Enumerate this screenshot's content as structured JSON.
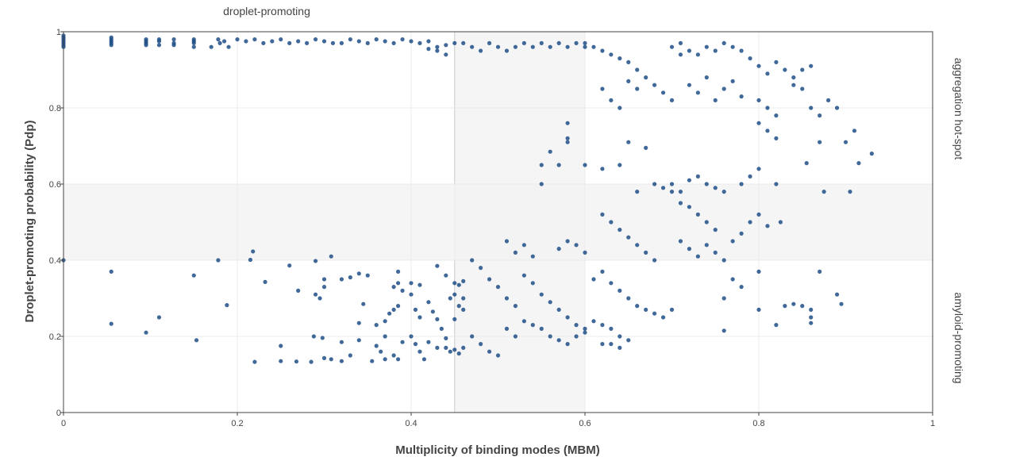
{
  "chart_data": {
    "type": "scatter",
    "xlabel": "Multiplicity of binding modes (MBM)",
    "ylabel": "Droplet-promoting probability (Pdp)",
    "xlim": [
      0,
      1
    ],
    "ylim": [
      0,
      1
    ],
    "x_ticks": [
      0,
      0.2,
      0.4,
      0.6,
      0.8,
      1
    ],
    "x_tick_labels": [
      "0",
      "0.2",
      "0.4",
      "0.6",
      "0.8",
      "1"
    ],
    "y_ticks": [
      0,
      0.2,
      0.4,
      0.6,
      0.8,
      1
    ],
    "y_tick_labels": [
      "0",
      "0.2",
      "0.4",
      "0.6",
      "0.8",
      "1"
    ],
    "grid": true,
    "shaded_bands": [
      {
        "axis": "x",
        "from": 0.45,
        "to": 0.6
      },
      {
        "axis": "y",
        "from": 0.4,
        "to": 0.6
      }
    ],
    "annotations": {
      "top": "droplet-promoting",
      "right_top": "aggregation hot-spot",
      "right_bottom": "amyloid-promoting"
    },
    "colors": {
      "marker": "#1f4e86",
      "band": "#f2f2f2",
      "grid": "#ebebeb",
      "frame": "#444444"
    },
    "points": [
      [
        0,
        0.97
      ],
      [
        0,
        0.98
      ],
      [
        0,
        0.96
      ],
      [
        0,
        0.99
      ],
      [
        0,
        0.975
      ],
      [
        0,
        0.965
      ],
      [
        0,
        0.985
      ],
      [
        0,
        0.4
      ],
      [
        0.055,
        0.98
      ],
      [
        0.055,
        0.97
      ],
      [
        0.055,
        0.965
      ],
      [
        0.055,
        0.975
      ],
      [
        0.055,
        0.985
      ],
      [
        0.055,
        0.37
      ],
      [
        0.055,
        0.233
      ],
      [
        0.095,
        0.98
      ],
      [
        0.095,
        0.97
      ],
      [
        0.095,
        0.965
      ],
      [
        0.095,
        0.975
      ],
      [
        0.095,
        0.21
      ],
      [
        0.11,
        0.98
      ],
      [
        0.11,
        0.965
      ],
      [
        0.11,
        0.975
      ],
      [
        0.11,
        0.25
      ],
      [
        0.127,
        0.98
      ],
      [
        0.127,
        0.97
      ],
      [
        0.127,
        0.965
      ],
      [
        0.15,
        0.98
      ],
      [
        0.15,
        0.97
      ],
      [
        0.15,
        0.975
      ],
      [
        0.15,
        0.96
      ],
      [
        0.15,
        0.36
      ],
      [
        0.153,
        0.19
      ],
      [
        0.17,
        0.96
      ],
      [
        0.178,
        0.98
      ],
      [
        0.18,
        0.97
      ],
      [
        0.185,
        0.975
      ],
      [
        0.19,
        0.96
      ],
      [
        0.178,
        0.4
      ],
      [
        0.188,
        0.282
      ],
      [
        0.2,
        0.98
      ],
      [
        0.21,
        0.975
      ],
      [
        0.22,
        0.98
      ],
      [
        0.23,
        0.97
      ],
      [
        0.24,
        0.975
      ],
      [
        0.218,
        0.423
      ],
      [
        0.215,
        0.401
      ],
      [
        0.232,
        0.343
      ],
      [
        0.22,
        0.133
      ],
      [
        0.25,
        0.98
      ],
      [
        0.26,
        0.97
      ],
      [
        0.27,
        0.975
      ],
      [
        0.28,
        0.97
      ],
      [
        0.29,
        0.98
      ],
      [
        0.3,
        0.975
      ],
      [
        0.31,
        0.97
      ],
      [
        0.26,
        0.386
      ],
      [
        0.27,
        0.32
      ],
      [
        0.29,
        0.398
      ],
      [
        0.3,
        0.35
      ],
      [
        0.308,
        0.41
      ],
      [
        0.29,
        0.31
      ],
      [
        0.295,
        0.3
      ],
      [
        0.3,
        0.33
      ],
      [
        0.25,
        0.175
      ],
      [
        0.25,
        0.135
      ],
      [
        0.268,
        0.134
      ],
      [
        0.285,
        0.133
      ],
      [
        0.288,
        0.2
      ],
      [
        0.298,
        0.196
      ],
      [
        0.3,
        0.143
      ],
      [
        0.308,
        0.14
      ],
      [
        0.32,
        0.97
      ],
      [
        0.33,
        0.98
      ],
      [
        0.34,
        0.975
      ],
      [
        0.35,
        0.97
      ],
      [
        0.36,
        0.98
      ],
      [
        0.37,
        0.975
      ],
      [
        0.38,
        0.97
      ],
      [
        0.39,
        0.98
      ],
      [
        0.32,
        0.35
      ],
      [
        0.33,
        0.355
      ],
      [
        0.34,
        0.365
      ],
      [
        0.35,
        0.36
      ],
      [
        0.345,
        0.285
      ],
      [
        0.34,
        0.235
      ],
      [
        0.32,
        0.185
      ],
      [
        0.33,
        0.15
      ],
      [
        0.32,
        0.135
      ],
      [
        0.34,
        0.19
      ],
      [
        0.355,
        0.135
      ],
      [
        0.36,
        0.23
      ],
      [
        0.37,
        0.24
      ],
      [
        0.375,
        0.26
      ],
      [
        0.38,
        0.27
      ],
      [
        0.385,
        0.28
      ],
      [
        0.38,
        0.33
      ],
      [
        0.385,
        0.34
      ],
      [
        0.39,
        0.32
      ],
      [
        0.385,
        0.37
      ],
      [
        0.36,
        0.175
      ],
      [
        0.37,
        0.2
      ],
      [
        0.38,
        0.15
      ],
      [
        0.385,
        0.14
      ],
      [
        0.39,
        0.185
      ],
      [
        0.37,
        0.14
      ],
      [
        0.365,
        0.16
      ],
      [
        0.4,
        0.975
      ],
      [
        0.41,
        0.97
      ],
      [
        0.42,
        0.975
      ],
      [
        0.43,
        0.96
      ],
      [
        0.44,
        0.965
      ],
      [
        0.45,
        0.97
      ],
      [
        0.42,
        0.955
      ],
      [
        0.43,
        0.95
      ],
      [
        0.44,
        0.94
      ],
      [
        0.4,
        0.34
      ],
      [
        0.41,
        0.335
      ],
      [
        0.4,
        0.31
      ],
      [
        0.405,
        0.27
      ],
      [
        0.41,
        0.25
      ],
      [
        0.42,
        0.29
      ],
      [
        0.425,
        0.265
      ],
      [
        0.43,
        0.245
      ],
      [
        0.4,
        0.2
      ],
      [
        0.405,
        0.18
      ],
      [
        0.41,
        0.16
      ],
      [
        0.42,
        0.185
      ],
      [
        0.43,
        0.17
      ],
      [
        0.415,
        0.14
      ],
      [
        0.43,
        0.385
      ],
      [
        0.44,
        0.36
      ],
      [
        0.44,
        0.195
      ],
      [
        0.445,
        0.3
      ],
      [
        0.45,
        0.31
      ],
      [
        0.45,
        0.245
      ],
      [
        0.435,
        0.22
      ],
      [
        0.44,
        0.17
      ],
      [
        0.445,
        0.16
      ],
      [
        0.45,
        0.165
      ],
      [
        0.455,
        0.155
      ],
      [
        0.46,
        0.17
      ],
      [
        0.45,
        0.34
      ],
      [
        0.455,
        0.335
      ],
      [
        0.46,
        0.3
      ],
      [
        0.46,
        0.27
      ],
      [
        0.46,
        0.345
      ],
      [
        0.455,
        0.28
      ],
      [
        0.46,
        0.97
      ],
      [
        0.47,
        0.96
      ],
      [
        0.48,
        0.95
      ],
      [
        0.49,
        0.97
      ],
      [
        0.5,
        0.96
      ],
      [
        0.51,
        0.95
      ],
      [
        0.52,
        0.96
      ],
      [
        0.53,
        0.97
      ],
      [
        0.54,
        0.96
      ],
      [
        0.55,
        0.97
      ],
      [
        0.56,
        0.96
      ],
      [
        0.57,
        0.97
      ],
      [
        0.58,
        0.96
      ],
      [
        0.59,
        0.97
      ],
      [
        0.6,
        0.96
      ],
      [
        0.47,
        0.4
      ],
      [
        0.48,
        0.38
      ],
      [
        0.49,
        0.35
      ],
      [
        0.5,
        0.33
      ],
      [
        0.51,
        0.3
      ],
      [
        0.52,
        0.28
      ],
      [
        0.53,
        0.36
      ],
      [
        0.54,
        0.34
      ],
      [
        0.55,
        0.31
      ],
      [
        0.56,
        0.29
      ],
      [
        0.57,
        0.27
      ],
      [
        0.58,
        0.25
      ],
      [
        0.59,
        0.23
      ],
      [
        0.6,
        0.21
      ],
      [
        0.47,
        0.2
      ],
      [
        0.48,
        0.18
      ],
      [
        0.49,
        0.16
      ],
      [
        0.5,
        0.15
      ],
      [
        0.51,
        0.22
      ],
      [
        0.52,
        0.2
      ],
      [
        0.53,
        0.24
      ],
      [
        0.54,
        0.23
      ],
      [
        0.55,
        0.22
      ],
      [
        0.56,
        0.2
      ],
      [
        0.57,
        0.19
      ],
      [
        0.58,
        0.18
      ],
      [
        0.59,
        0.2
      ],
      [
        0.6,
        0.22
      ],
      [
        0.51,
        0.45
      ],
      [
        0.52,
        0.42
      ],
      [
        0.53,
        0.44
      ],
      [
        0.54,
        0.41
      ],
      [
        0.55,
        0.6
      ],
      [
        0.55,
        0.65
      ],
      [
        0.56,
        0.685
      ],
      [
        0.57,
        0.65
      ],
      [
        0.58,
        0.71
      ],
      [
        0.58,
        0.72
      ],
      [
        0.58,
        0.76
      ],
      [
        0.57,
        0.43
      ],
      [
        0.58,
        0.45
      ],
      [
        0.59,
        0.44
      ],
      [
        0.6,
        0.42
      ],
      [
        0.6,
        0.97
      ],
      [
        0.61,
        0.96
      ],
      [
        0.62,
        0.95
      ],
      [
        0.63,
        0.94
      ],
      [
        0.64,
        0.93
      ],
      [
        0.65,
        0.92
      ],
      [
        0.66,
        0.9
      ],
      [
        0.67,
        0.88
      ],
      [
        0.68,
        0.86
      ],
      [
        0.69,
        0.84
      ],
      [
        0.7,
        0.82
      ],
      [
        0.62,
        0.85
      ],
      [
        0.63,
        0.82
      ],
      [
        0.64,
        0.8
      ],
      [
        0.65,
        0.87
      ],
      [
        0.66,
        0.85
      ],
      [
        0.6,
        0.65
      ],
      [
        0.62,
        0.64
      ],
      [
        0.64,
        0.65
      ],
      [
        0.65,
        0.71
      ],
      [
        0.67,
        0.695
      ],
      [
        0.66,
        0.58
      ],
      [
        0.68,
        0.6
      ],
      [
        0.69,
        0.59
      ],
      [
        0.7,
        0.58
      ],
      [
        0.62,
        0.52
      ],
      [
        0.63,
        0.5
      ],
      [
        0.64,
        0.48
      ],
      [
        0.65,
        0.46
      ],
      [
        0.66,
        0.44
      ],
      [
        0.67,
        0.42
      ],
      [
        0.68,
        0.4
      ],
      [
        0.61,
        0.35
      ],
      [
        0.62,
        0.37
      ],
      [
        0.63,
        0.34
      ],
      [
        0.64,
        0.32
      ],
      [
        0.65,
        0.3
      ],
      [
        0.66,
        0.28
      ],
      [
        0.67,
        0.27
      ],
      [
        0.68,
        0.26
      ],
      [
        0.69,
        0.25
      ],
      [
        0.7,
        0.27
      ],
      [
        0.61,
        0.24
      ],
      [
        0.62,
        0.23
      ],
      [
        0.63,
        0.22
      ],
      [
        0.64,
        0.2
      ],
      [
        0.65,
        0.19
      ],
      [
        0.62,
        0.18
      ],
      [
        0.63,
        0.18
      ],
      [
        0.64,
        0.17
      ],
      [
        0.7,
        0.96
      ],
      [
        0.71,
        0.97
      ],
      [
        0.72,
        0.95
      ],
      [
        0.73,
        0.94
      ],
      [
        0.74,
        0.96
      ],
      [
        0.75,
        0.95
      ],
      [
        0.76,
        0.97
      ],
      [
        0.71,
        0.94
      ],
      [
        0.72,
        0.86
      ],
      [
        0.73,
        0.84
      ],
      [
        0.74,
        0.88
      ],
      [
        0.75,
        0.82
      ],
      [
        0.76,
        0.85
      ],
      [
        0.77,
        0.87
      ],
      [
        0.78,
        0.83
      ],
      [
        0.7,
        0.6
      ],
      [
        0.71,
        0.58
      ],
      [
        0.72,
        0.61
      ],
      [
        0.73,
        0.62
      ],
      [
        0.74,
        0.6
      ],
      [
        0.75,
        0.59
      ],
      [
        0.76,
        0.58
      ],
      [
        0.71,
        0.55
      ],
      [
        0.72,
        0.54
      ],
      [
        0.73,
        0.52
      ],
      [
        0.74,
        0.5
      ],
      [
        0.75,
        0.48
      ],
      [
        0.71,
        0.45
      ],
      [
        0.72,
        0.43
      ],
      [
        0.73,
        0.41
      ],
      [
        0.74,
        0.44
      ],
      [
        0.75,
        0.42
      ],
      [
        0.76,
        0.4
      ],
      [
        0.77,
        0.45
      ],
      [
        0.78,
        0.47
      ],
      [
        0.79,
        0.5
      ],
      [
        0.8,
        0.52
      ],
      [
        0.81,
        0.49
      ],
      [
        0.78,
        0.6
      ],
      [
        0.79,
        0.62
      ],
      [
        0.8,
        0.64
      ],
      [
        0.76,
        0.3
      ],
      [
        0.77,
        0.35
      ],
      [
        0.78,
        0.33
      ],
      [
        0.8,
        0.37
      ],
      [
        0.8,
        0.27
      ],
      [
        0.82,
        0.23
      ],
      [
        0.76,
        0.215
      ],
      [
        0.77,
        0.96
      ],
      [
        0.78,
        0.95
      ],
      [
        0.79,
        0.93
      ],
      [
        0.8,
        0.91
      ],
      [
        0.81,
        0.89
      ],
      [
        0.82,
        0.92
      ],
      [
        0.83,
        0.9
      ],
      [
        0.84,
        0.88
      ],
      [
        0.85,
        0.9
      ],
      [
        0.86,
        0.91
      ],
      [
        0.8,
        0.76
      ],
      [
        0.81,
        0.74
      ],
      [
        0.82,
        0.72
      ],
      [
        0.8,
        0.82
      ],
      [
        0.81,
        0.8
      ],
      [
        0.82,
        0.78
      ],
      [
        0.84,
        0.86
      ],
      [
        0.85,
        0.85
      ],
      [
        0.83,
        0.28
      ],
      [
        0.84,
        0.285
      ],
      [
        0.85,
        0.28
      ],
      [
        0.86,
        0.27
      ],
      [
        0.86,
        0.25
      ],
      [
        0.86,
        0.235
      ],
      [
        0.87,
        0.37
      ],
      [
        0.89,
        0.31
      ],
      [
        0.895,
        0.285
      ],
      [
        0.86,
        0.8
      ],
      [
        0.87,
        0.78
      ],
      [
        0.88,
        0.82
      ],
      [
        0.89,
        0.8
      ],
      [
        0.87,
        0.71
      ],
      [
        0.9,
        0.71
      ],
      [
        0.91,
        0.74
      ],
      [
        0.915,
        0.655
      ],
      [
        0.93,
        0.68
      ],
      [
        0.875,
        0.58
      ],
      [
        0.905,
        0.58
      ],
      [
        0.855,
        0.655
      ],
      [
        0.82,
        0.6
      ],
      [
        0.825,
        0.5
      ]
    ]
  }
}
